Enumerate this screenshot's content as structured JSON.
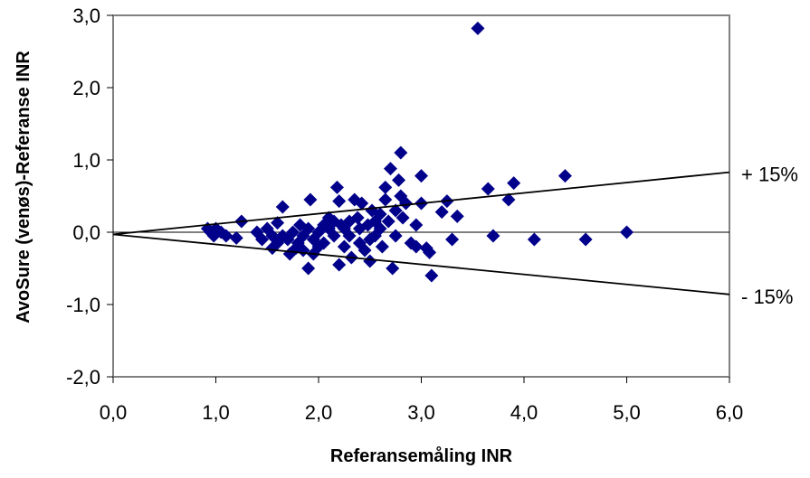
{
  "chart_data": {
    "type": "scatter",
    "xlabel": "Referansemåling INR",
    "ylabel": "AvoSure (venøs)-Referanse INR",
    "xlim": [
      0,
      6
    ],
    "ylim": [
      -2,
      3
    ],
    "x_ticks": [
      0,
      1,
      2,
      3,
      4,
      5,
      6
    ],
    "x_tick_labels": [
      "0,0",
      "1,0",
      "2,0",
      "3,0",
      "4,0",
      "5,0",
      "6,0"
    ],
    "y_ticks": [
      -2,
      -1,
      0,
      1,
      2,
      3
    ],
    "y_tick_labels": [
      "-2,0",
      "-1,0",
      "0,0",
      "1,0",
      "2,0",
      "3,0"
    ],
    "grid": false,
    "legend": "none",
    "zero_line": 0,
    "marker_color": "#00008B",
    "lines": [
      {
        "label": "+ 15%",
        "x": [
          0,
          6
        ],
        "y": [
          -0.03,
          0.83
        ]
      },
      {
        "label": "- 15%",
        "x": [
          0,
          6
        ],
        "y": [
          -0.03,
          -0.86
        ]
      }
    ],
    "points": [
      [
        0.92,
        0.05
      ],
      [
        0.95,
        0.0
      ],
      [
        0.98,
        -0.05
      ],
      [
        1.0,
        0.05
      ],
      [
        1.05,
        0.0
      ],
      [
        1.1,
        -0.05
      ],
      [
        1.2,
        -0.08
      ],
      [
        1.25,
        0.15
      ],
      [
        1.4,
        0.0
      ],
      [
        1.45,
        -0.1
      ],
      [
        1.5,
        0.05
      ],
      [
        1.55,
        -0.05
      ],
      [
        1.55,
        -0.22
      ],
      [
        1.6,
        0.13
      ],
      [
        1.6,
        -0.15
      ],
      [
        1.65,
        0.35
      ],
      [
        1.65,
        -0.05
      ],
      [
        1.7,
        -0.1
      ],
      [
        1.72,
        -0.3
      ],
      [
        1.75,
        0.0
      ],
      [
        1.78,
        -0.22
      ],
      [
        1.8,
        -0.15
      ],
      [
        1.82,
        0.1
      ],
      [
        1.85,
        -0.05
      ],
      [
        1.85,
        -0.25
      ],
      [
        1.9,
        0.05
      ],
      [
        1.9,
        -0.5
      ],
      [
        1.92,
        0.45
      ],
      [
        1.95,
        -0.1
      ],
      [
        1.95,
        -0.3
      ],
      [
        2.0,
        0.0
      ],
      [
        2.0,
        -0.2
      ],
      [
        2.05,
        0.1
      ],
      [
        2.05,
        -0.15
      ],
      [
        2.1,
        0.2
      ],
      [
        2.1,
        0.05
      ],
      [
        2.15,
        0.15
      ],
      [
        2.15,
        -0.05
      ],
      [
        2.18,
        0.62
      ],
      [
        2.2,
        0.43
      ],
      [
        2.2,
        -0.45
      ],
      [
        2.22,
        0.1
      ],
      [
        2.25,
        -0.2
      ],
      [
        2.25,
        0.05
      ],
      [
        2.3,
        0.15
      ],
      [
        2.3,
        -0.05
      ],
      [
        2.32,
        -0.35
      ],
      [
        2.35,
        0.45
      ],
      [
        2.38,
        0.2
      ],
      [
        2.4,
        0.05
      ],
      [
        2.4,
        -0.15
      ],
      [
        2.42,
        0.4
      ],
      [
        2.45,
        -0.25
      ],
      [
        2.48,
        0.1
      ],
      [
        2.5,
        -0.1
      ],
      [
        2.5,
        -0.4
      ],
      [
        2.52,
        0.3
      ],
      [
        2.55,
        0.15
      ],
      [
        2.55,
        -0.05
      ],
      [
        2.6,
        0.05
      ],
      [
        2.6,
        0.25
      ],
      [
        2.62,
        -0.2
      ],
      [
        2.65,
        0.45
      ],
      [
        2.65,
        0.62
      ],
      [
        2.68,
        0.15
      ],
      [
        2.7,
        0.88
      ],
      [
        2.72,
        -0.5
      ],
      [
        2.75,
        0.3
      ],
      [
        2.75,
        -0.05
      ],
      [
        2.78,
        0.72
      ],
      [
        2.8,
        1.1
      ],
      [
        2.8,
        0.5
      ],
      [
        2.82,
        0.2
      ],
      [
        2.85,
        0.4
      ],
      [
        2.9,
        -0.15
      ],
      [
        2.95,
        0.1
      ],
      [
        2.95,
        -0.2
      ],
      [
        3.0,
        0.4
      ],
      [
        3.0,
        0.78
      ],
      [
        3.05,
        -0.22
      ],
      [
        3.08,
        -0.28
      ],
      [
        3.1,
        -0.6
      ],
      [
        3.2,
        0.28
      ],
      [
        3.25,
        0.43
      ],
      [
        3.3,
        -0.1
      ],
      [
        3.35,
        0.22
      ],
      [
        3.55,
        2.82
      ],
      [
        3.65,
        0.6
      ],
      [
        3.7,
        -0.05
      ],
      [
        3.85,
        0.45
      ],
      [
        3.9,
        0.68
      ],
      [
        4.1,
        -0.1
      ],
      [
        4.4,
        0.78
      ],
      [
        4.6,
        -0.1
      ],
      [
        5.0,
        0.0
      ]
    ]
  }
}
